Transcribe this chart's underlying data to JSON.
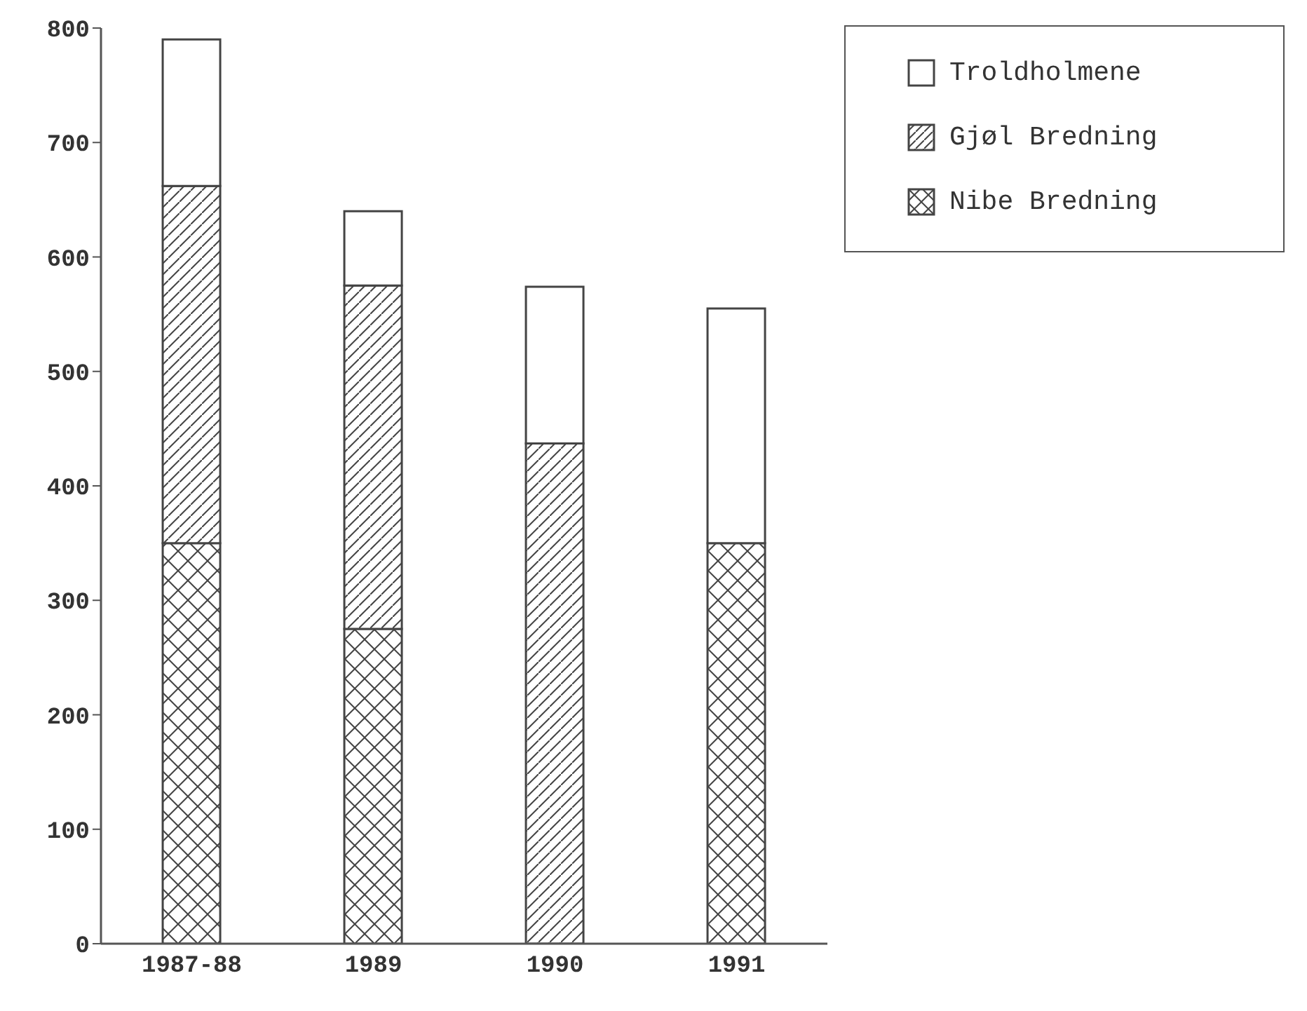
{
  "chart_data": {
    "type": "bar",
    "stacked": true,
    "categories": [
      "1987-88",
      "1989",
      "1990",
      "1991"
    ],
    "series": [
      {
        "name": "Nibe Bredning",
        "color": "#444444",
        "values": [
          350,
          275,
          null,
          350
        ]
      },
      {
        "name": "Gjøl Bredning",
        "color": "#444444",
        "values": [
          312,
          300,
          437,
          null
        ]
      },
      {
        "name": "Troldholmene",
        "color": "#444444",
        "values": [
          128,
          65,
          137,
          205
        ]
      }
    ],
    "ylim": [
      0,
      800
    ],
    "yticks": [
      0,
      100,
      200,
      300,
      400,
      500,
      600,
      700,
      800
    ],
    "grid": false,
    "legend": "top right"
  }
}
